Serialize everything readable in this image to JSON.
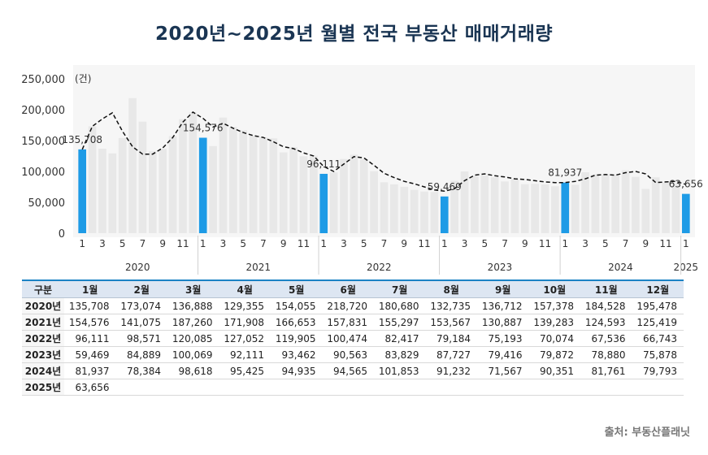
{
  "page": {
    "title": "2020년~2025년 월별 전국 부동산 매매거래량",
    "source": "출처: 부동산플래닛"
  },
  "chart_data": {
    "type": "bar",
    "unit_label": "(건)",
    "ylim": [
      0,
      250000
    ],
    "yticks": [
      "0",
      "50,000",
      "100,000",
      "150,000",
      "200,000",
      "250,000"
    ],
    "grid": false,
    "highlight_color": "#1e9be6",
    "bar_color": "#e8e8e8",
    "line_style": "dashed black (12-month moving trend)",
    "years": [
      "2020",
      "2021",
      "2022",
      "2023",
      "2024",
      "2025"
    ],
    "month_tick_labels": [
      "1",
      "3",
      "5",
      "7",
      "9",
      "11"
    ],
    "series": [
      {
        "year": "2020",
        "values": [
          135708,
          173074,
          136888,
          129355,
          154055,
          218720,
          180680,
          132735,
          136712,
          157378,
          184528,
          195478
        ]
      },
      {
        "year": "2021",
        "values": [
          154576,
          141075,
          187260,
          171908,
          166653,
          157831,
          155297,
          153567,
          130887,
          139283,
          124593,
          125419
        ]
      },
      {
        "year": "2022",
        "values": [
          96111,
          98571,
          120085,
          127052,
          119905,
          100474,
          82417,
          79184,
          75193,
          70074,
          67536,
          66743
        ]
      },
      {
        "year": "2023",
        "values": [
          59469,
          84889,
          100069,
          92111,
          93462,
          90563,
          83829,
          87727,
          79416,
          79872,
          78880,
          75878
        ]
      },
      {
        "year": "2024",
        "values": [
          81937,
          78384,
          98618,
          95425,
          94935,
          94565,
          101853,
          91232,
          71567,
          90351,
          81761,
          79793
        ]
      },
      {
        "year": "2025",
        "values": [
          63656
        ]
      }
    ],
    "trend_line": [
      135708,
      173074,
      185000,
      195000,
      165000,
      140000,
      128000,
      128000,
      138000,
      155000,
      180000,
      196000,
      186000,
      172000,
      178000,
      170000,
      163000,
      158000,
      155000,
      148000,
      140000,
      137000,
      130000,
      125000,
      108000,
      100000,
      112000,
      124000,
      122000,
      110000,
      97000,
      90000,
      84000,
      80000,
      75000,
      70000,
      68000,
      72000,
      85000,
      94000,
      96000,
      93000,
      91000,
      88000,
      87000,
      85000,
      83000,
      82000,
      82000,
      84000,
      88000,
      94000,
      95000,
      94000,
      98000,
      100000,
      96000,
      82000,
      83000,
      84000,
      79000
    ],
    "data_labels": [
      "135,708",
      "154,576",
      "96,111",
      "59,469",
      "81,937",
      "63,656"
    ]
  },
  "table": {
    "headers": [
      "구분",
      "1월",
      "2월",
      "3월",
      "4월",
      "5월",
      "6월",
      "7월",
      "8월",
      "9월",
      "10월",
      "11월",
      "12월"
    ],
    "rows": [
      {
        "label": "2020년",
        "cells": [
          "135,708",
          "173,074",
          "136,888",
          "129,355",
          "154,055",
          "218,720",
          "180,680",
          "132,735",
          "136,712",
          "157,378",
          "184,528",
          "195,478"
        ]
      },
      {
        "label": "2021년",
        "cells": [
          "154,576",
          "141,075",
          "187,260",
          "171,908",
          "166,653",
          "157,831",
          "155,297",
          "153,567",
          "130,887",
          "139,283",
          "124,593",
          "125,419"
        ]
      },
      {
        "label": "2022년",
        "cells": [
          "96,111",
          "98,571",
          "120,085",
          "127,052",
          "119,905",
          "100,474",
          "82,417",
          "79,184",
          "75,193",
          "70,074",
          "67,536",
          "66,743"
        ]
      },
      {
        "label": "2023년",
        "cells": [
          "59,469",
          "84,889",
          "100,069",
          "92,111",
          "93,462",
          "90,563",
          "83,829",
          "87,727",
          "79,416",
          "79,872",
          "78,880",
          "75,878"
        ]
      },
      {
        "label": "2024년",
        "cells": [
          "81,937",
          "78,384",
          "98,618",
          "95,425",
          "94,935",
          "94,565",
          "101,853",
          "91,232",
          "71,567",
          "90,351",
          "81,761",
          "79,793"
        ]
      },
      {
        "label": "2025년",
        "cells": [
          "63,656",
          "",
          "",
          "",
          "",
          "",
          "",
          "",
          "",
          "",
          "",
          ""
        ]
      }
    ]
  }
}
